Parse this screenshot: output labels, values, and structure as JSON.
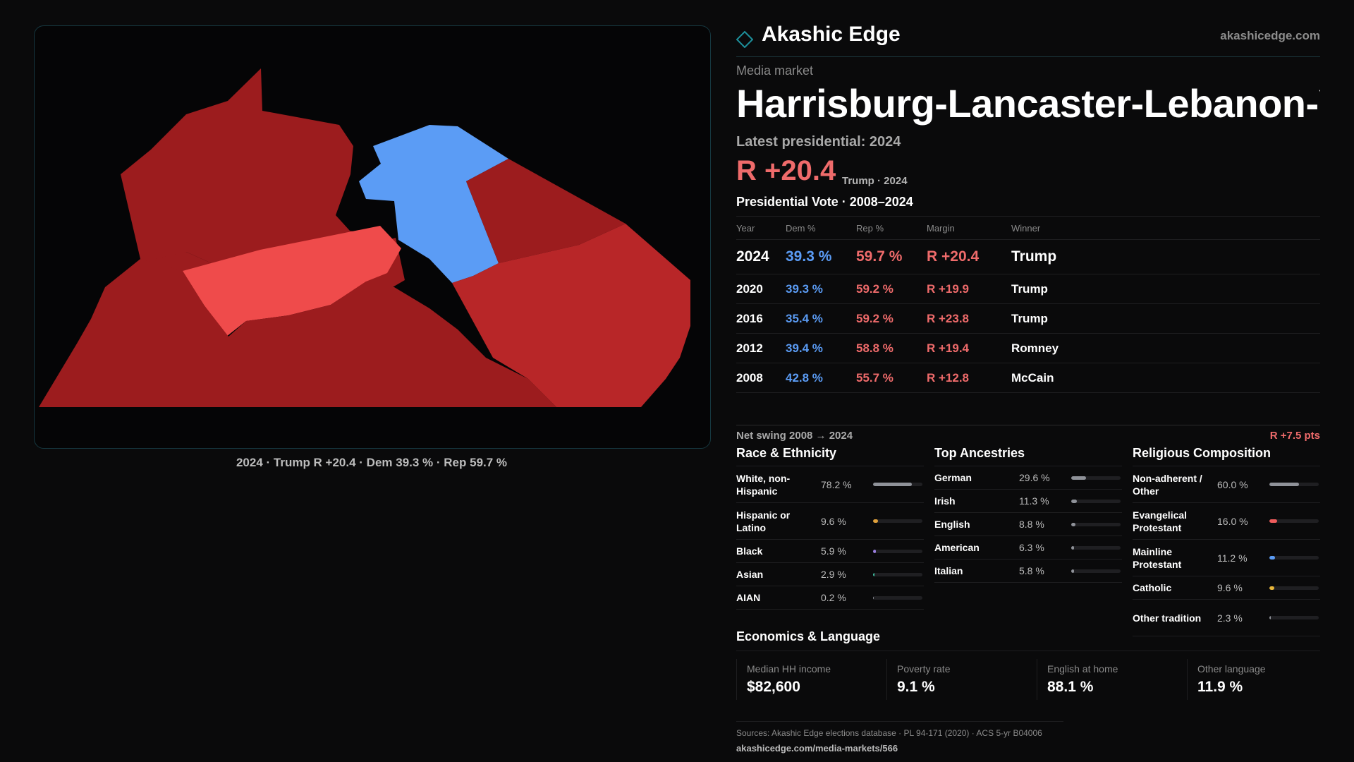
{
  "brand": {
    "name": "Akashic Edge",
    "url": "akashicedge.com"
  },
  "market": {
    "kicker": "Media market",
    "name": "Harrisburg-Lancaster-Lebanon-York"
  },
  "latest": {
    "label": "Latest presidential: 2024",
    "margin": "R +20.4",
    "winner_year": "Trump · 2024"
  },
  "vote_history": {
    "title": "Presidential Vote · 2008–2024",
    "headers": {
      "year": "Year",
      "dem": "Dem %",
      "rep": "Rep %",
      "margin": "Margin",
      "winner": "Winner"
    },
    "rows": [
      {
        "year": "2024",
        "dem": "39.3 %",
        "rep": "59.7 %",
        "margin": "R +20.4",
        "winner": "Trump"
      },
      {
        "year": "2020",
        "dem": "39.3 %",
        "rep": "59.2 %",
        "margin": "R +19.9",
        "winner": "Trump"
      },
      {
        "year": "2016",
        "dem": "35.4 %",
        "rep": "59.2 %",
        "margin": "R +23.8",
        "winner": "Trump"
      },
      {
        "year": "2012",
        "dem": "39.4 %",
        "rep": "58.8 %",
        "margin": "R +19.4",
        "winner": "Romney"
      },
      {
        "year": "2008",
        "dem": "42.8 %",
        "rep": "55.7 %",
        "margin": "R +12.8",
        "winner": "McCain"
      }
    ]
  },
  "swing": {
    "label": "Net swing 2008 → 2024",
    "value": "R +7.5 pts"
  },
  "race": {
    "title": "Race & Ethnicity",
    "rows": [
      {
        "label": "White, non-Hispanic",
        "value": "78.2 %",
        "share": 0.782,
        "color": "#8f9299"
      },
      {
        "label": "Hispanic or Latino",
        "value": "9.6 %",
        "share": 0.096,
        "color": "#e0a13b"
      },
      {
        "label": "Black",
        "value": "5.9 %",
        "share": 0.059,
        "color": "#9a7fe0"
      },
      {
        "label": "Asian",
        "value": "2.9 %",
        "share": 0.029,
        "color": "#3fc3a4"
      },
      {
        "label": "AIAN",
        "value": "0.2 %",
        "share": 0.002,
        "color": "#8f9299"
      }
    ]
  },
  "ancestry": {
    "title": "Top Ancestries",
    "rows": [
      {
        "label": "German",
        "value": "29.6 %",
        "share": 0.296,
        "color": "#8f9299"
      },
      {
        "label": "Irish",
        "value": "11.3 %",
        "share": 0.113,
        "color": "#8f9299"
      },
      {
        "label": "English",
        "value": "8.8 %",
        "share": 0.088,
        "color": "#8f9299"
      },
      {
        "label": "American",
        "value": "6.3 %",
        "share": 0.063,
        "color": "#8f9299"
      },
      {
        "label": "Italian",
        "value": "5.8 %",
        "share": 0.058,
        "color": "#8f9299"
      }
    ]
  },
  "religion": {
    "title": "Religious Composition",
    "rows": [
      {
        "label": "Non-adherent / Other",
        "value": "60.0 %",
        "share": 0.6,
        "color": "#8f9299"
      },
      {
        "label": "Evangelical Protestant",
        "value": "16.0 %",
        "share": 0.16,
        "color": "#ef5c5c"
      },
      {
        "label": "Mainline Protestant",
        "value": "11.2 %",
        "share": 0.112,
        "color": "#5b9cf5"
      },
      {
        "label": "Catholic",
        "value": "9.6 %",
        "share": 0.096,
        "color": "#e8b63a"
      },
      {
        "label": "Other tradition",
        "value": "2.3 %",
        "share": 0.023,
        "color": "#8f9299"
      }
    ]
  },
  "economics": {
    "title": "Economics & Language",
    "stats": [
      {
        "label": "Median HH income",
        "value": "$82,600"
      },
      {
        "label": "Poverty rate",
        "value": "9.1 %"
      },
      {
        "label": "English at home",
        "value": "88.1 %"
      },
      {
        "label": "Other language",
        "value": "11.9 %"
      }
    ]
  },
  "map": {
    "caption": "2024 · Trump R +20.4 · Dem 39.3 % · Rep 59.7 %",
    "colors": {
      "rep_dark": "#9c1c1e",
      "rep_mid": "#b82628",
      "rep_light": "#ef4b4b",
      "dem": "#5b9cf5"
    }
  },
  "footer": {
    "sources": "Sources: Akashic Edge elections database · PL 94-171 (2020) · ACS 5-yr B04006",
    "url": "akashicedge.com/media-markets/566"
  }
}
